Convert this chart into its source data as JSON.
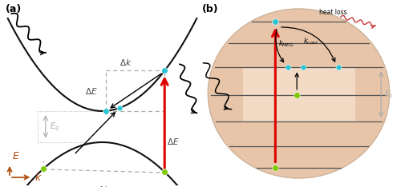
{
  "bg_color": "#ffffff",
  "panel_a": {
    "label": "(a)",
    "parabola_color": "#111111",
    "dot_cyan": "#29c5d4",
    "dot_green": "#7dc900",
    "red_arrow_color": "#dd0000",
    "dashed_color": "#aaaaaa",
    "dotted_color": "#bbbbbb",
    "axis_color": "#b05010",
    "Eg_color": "#aaaaaa"
  },
  "panel_b": {
    "label": "(b)",
    "circle_color": "#e8c5a8",
    "line_color": "#555555",
    "dot_cyan": "#29c5d4",
    "dot_green": "#7dc900",
    "red_arrow_color": "#dd0000",
    "Eg_color": "#aaaaaa",
    "heat_wave_color": "#dd4444",
    "rect_color": "#f5e0cc"
  }
}
